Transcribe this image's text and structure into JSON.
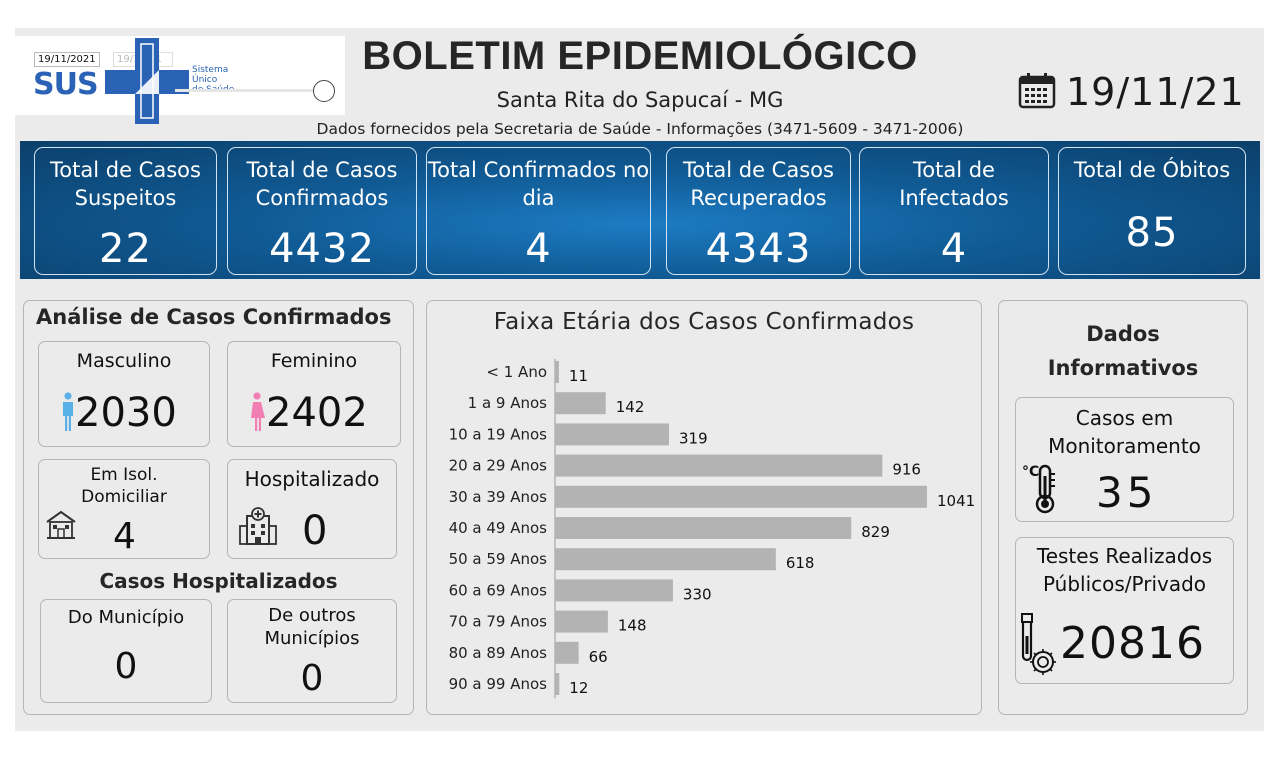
{
  "logo": {
    "date_badge": "19/11/2021",
    "date_badge_ghost": "19/11/21",
    "brand": "SUS",
    "brand_text": [
      "Sistema",
      "Único",
      "de Saúde"
    ]
  },
  "header": {
    "title": "BOLETIM EPIDEMIOLÓGICO",
    "city": "Santa Rita do Sapucaí - MG",
    "source": "Dados fornecidos pela Secretaria de Saúde - Informações (3471-5609 - 3471-2006)",
    "date": "19/11/21",
    "calendar_icon": "calendar-icon"
  },
  "kpis": [
    {
      "label": "Total de Casos Suspeitos",
      "value": "22"
    },
    {
      "label": "Total de Casos Confirmados",
      "value": "4432"
    },
    {
      "label": "Total Confirmados no dia",
      "value": "4"
    },
    {
      "label": "Total de Casos Recuperados",
      "value": "4343"
    },
    {
      "label": "Total de Infectados",
      "value": "4"
    },
    {
      "label": "Total de Óbitos",
      "value": "85"
    }
  ],
  "analysis": {
    "title": "Análise de Casos Confirmados",
    "male": {
      "label": "Masculino",
      "value": "2030",
      "icon": "male-person-icon",
      "color": "#5ab0e8"
    },
    "female": {
      "label": "Feminino",
      "value": "2402",
      "icon": "female-person-icon",
      "color": "#f27fb4"
    },
    "home_isolation": {
      "label": "Em Isol. Domiciliar",
      "value": "4",
      "icon": "house-icon"
    },
    "hospitalized": {
      "label": "Hospitalizado",
      "value": "0",
      "icon": "hospital-icon"
    },
    "hosp_title": "Casos Hospitalizados",
    "municipality": {
      "label": "Do Município",
      "value": "0"
    },
    "other_municipalities": {
      "label": "De outros Municípios",
      "value": "0"
    }
  },
  "chart_data": {
    "type": "bar",
    "orientation": "horizontal",
    "title": "Faixa Etária dos Casos Confirmados",
    "categories": [
      "< 1 Ano",
      "1 a 9 Anos",
      "10 a 19 Anos",
      "20 a 29 Anos",
      "30 a 39 Anos",
      "40 a 49 Anos",
      "50 a 59 Anos",
      "60 a 69 Anos",
      "70 a 79 Anos",
      "80 a 89 Anos",
      "90 a 99 Anos"
    ],
    "values": [
      11,
      142,
      319,
      916,
      1041,
      829,
      618,
      330,
      148,
      66,
      12
    ],
    "bar_color": "#b3b3b3",
    "data_labels": true,
    "grid": false
  },
  "info": {
    "title": "Dados Informativos",
    "monitoring": {
      "label": "Casos em Monitoramento",
      "value": "35",
      "icon": "thermometer-icon"
    },
    "tests": {
      "label": "Testes Realizados Públicos/Privado",
      "value": "20816",
      "icon": "test-tube-virus-icon"
    }
  }
}
